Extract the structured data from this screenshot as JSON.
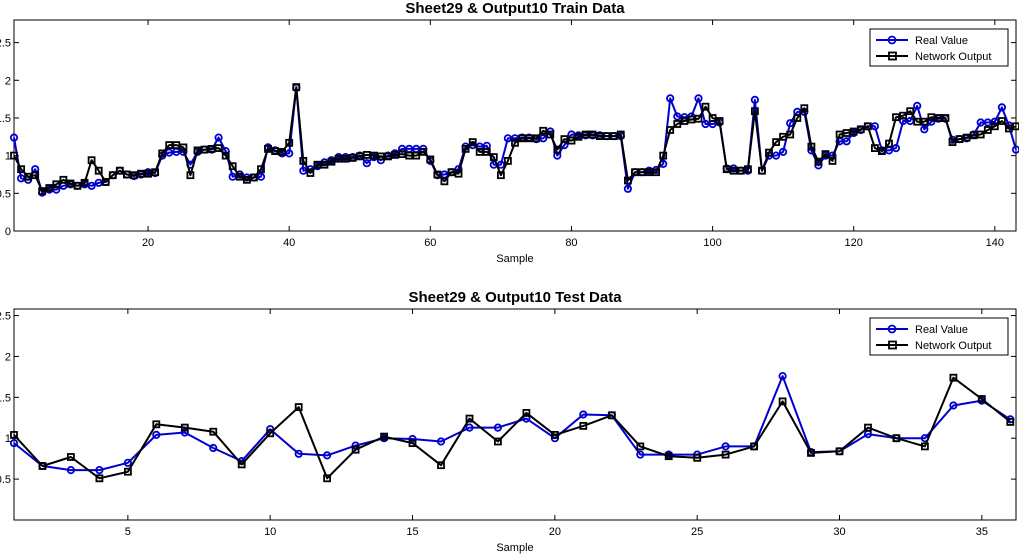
{
  "chart_data": [
    {
      "type": "line",
      "title": "Sheet29 & Output10 Train Data",
      "xlabel": "Sample",
      "ylabel": "",
      "xlim": [
        1,
        143
      ],
      "ylim": [
        0,
        2.8
      ],
      "xticks": [
        20,
        40,
        60,
        80,
        100,
        120,
        140
      ],
      "yticks": [
        0,
        0.5,
        1,
        1.5,
        2,
        2.5
      ],
      "ytick_labels": [
        "0",
        "0.5",
        "1",
        "1.5",
        "2",
        "2.5"
      ],
      "grid": false,
      "legend_position": "top-right",
      "series": [
        {
          "name": "Real Value",
          "color": "#0000d0",
          "marker": "circle",
          "values": [
            1.24,
            0.7,
            0.68,
            0.82,
            0.51,
            0.55,
            0.55,
            0.6,
            0.62,
            0.6,
            0.62,
            0.6,
            0.64,
            0.65,
            0.74,
            0.8,
            0.75,
            0.73,
            0.75,
            0.78,
            0.77,
            1.0,
            1.04,
            1.05,
            1.05,
            0.88,
            1.05,
            1.08,
            1.08,
            1.24,
            1.06,
            0.72,
            0.75,
            0.71,
            0.71,
            0.72,
            1.11,
            1.07,
            1.03,
            1.03,
            1.9,
            0.8,
            0.82,
            0.86,
            0.91,
            0.94,
            0.98,
            0.98,
            0.98,
            1.0,
            0.9,
            0.98,
            0.94,
            1.0,
            1.03,
            1.09,
            1.09,
            1.09,
            1.09,
            0.93,
            0.74,
            0.75,
            0.78,
            0.82,
            1.12,
            1.14,
            1.12,
            1.13,
            0.88,
            0.88,
            1.23,
            1.23,
            1.24,
            1.24,
            1.22,
            1.23,
            1.32,
            1.0,
            1.14,
            1.28,
            1.27,
            1.27,
            1.27,
            1.27,
            1.26,
            1.26,
            1.26,
            0.56,
            0.78,
            0.78,
            0.8,
            0.81,
            0.89,
            1.76,
            1.52,
            1.51,
            1.52,
            1.76,
            1.42,
            1.42,
            1.44,
            0.83,
            0.83,
            0.8,
            0.8,
            1.74,
            0.8,
            1.0,
            1.0,
            1.05,
            1.43,
            1.58,
            1.58,
            1.07,
            0.87,
            1.0,
            1.0,
            1.19,
            1.19,
            1.3,
            1.34,
            1.39,
            1.39,
            1.07,
            1.07,
            1.1,
            1.46,
            1.46,
            1.66,
            1.35,
            1.45,
            1.49,
            1.49,
            1.21,
            1.22,
            1.23,
            1.28,
            1.44,
            1.44,
            1.45,
            1.64,
            1.4,
            1.08
          ]
        },
        {
          "name": "Network Output",
          "color": "#000000",
          "marker": "square",
          "values": [
            1.0,
            0.82,
            0.72,
            0.74,
            0.53,
            0.57,
            0.62,
            0.68,
            0.63,
            0.6,
            0.64,
            0.94,
            0.8,
            0.65,
            0.74,
            0.8,
            0.75,
            0.74,
            0.76,
            0.76,
            0.78,
            1.03,
            1.14,
            1.14,
            1.11,
            0.74,
            1.07,
            1.08,
            1.09,
            1.1,
            1.0,
            0.86,
            0.72,
            0.68,
            0.71,
            0.82,
            1.09,
            1.06,
            1.05,
            1.17,
            1.91,
            0.93,
            0.77,
            0.88,
            0.88,
            0.92,
            0.96,
            0.96,
            0.97,
            0.99,
            1.01,
            1.0,
            0.99,
            0.99,
            1.01,
            1.02,
            1.0,
            1.0,
            1.05,
            0.95,
            0.75,
            0.66,
            0.78,
            0.76,
            1.09,
            1.18,
            1.05,
            1.05,
            0.98,
            0.74,
            0.93,
            1.17,
            1.23,
            1.23,
            1.23,
            1.33,
            1.28,
            1.08,
            1.22,
            1.2,
            1.25,
            1.28,
            1.28,
            1.26,
            1.26,
            1.26,
            1.28,
            0.67,
            0.78,
            0.78,
            0.78,
            0.78,
            1.0,
            1.34,
            1.42,
            1.46,
            1.48,
            1.49,
            1.65,
            1.5,
            1.46,
            0.82,
            0.8,
            0.8,
            0.82,
            1.59,
            0.8,
            1.04,
            1.18,
            1.25,
            1.28,
            1.5,
            1.63,
            1.12,
            0.92,
            1.02,
            0.93,
            1.28,
            1.3,
            1.32,
            1.35,
            1.39,
            1.1,
            1.06,
            1.16,
            1.51,
            1.53,
            1.59,
            1.45,
            1.45,
            1.51,
            1.5,
            1.5,
            1.18,
            1.22,
            1.24,
            1.27,
            1.28,
            1.34,
            1.39,
            1.46,
            1.36,
            1.39
          ]
        }
      ]
    },
    {
      "type": "line",
      "title": "Sheet29 & Output10 Test Data",
      "xlabel": "Sample",
      "ylabel": "",
      "xlim": [
        1,
        36.2
      ],
      "ylim": [
        0,
        2.58
      ],
      "xticks": [
        5,
        10,
        15,
        20,
        25,
        30,
        35
      ],
      "yticks": [
        0.5,
        1,
        1.5,
        2,
        2.5
      ],
      "ytick_labels": [
        "0.5",
        "1",
        "1.5",
        "2",
        "2.5"
      ],
      "grid": false,
      "legend_position": "top-right",
      "series": [
        {
          "name": "Real Value",
          "color": "#0000d0",
          "marker": "circle",
          "values": [
            0.94,
            0.66,
            0.61,
            0.61,
            0.7,
            1.04,
            1.07,
            0.88,
            0.72,
            1.11,
            0.81,
            0.79,
            0.91,
            1.0,
            0.99,
            0.96,
            1.13,
            1.13,
            1.24,
            1.0,
            1.29,
            1.28,
            0.8,
            0.8,
            0.8,
            0.9,
            0.9,
            1.76,
            0.83,
            0.84,
            1.05,
            1.0,
            1.0,
            1.4,
            1.46,
            1.23
          ]
        },
        {
          "name": "Network Output",
          "color": "#000000",
          "marker": "square",
          "values": [
            1.04,
            0.66,
            0.77,
            0.51,
            0.59,
            1.17,
            1.13,
            1.08,
            0.68,
            1.06,
            1.38,
            0.51,
            0.86,
            1.02,
            0.94,
            0.67,
            1.24,
            0.96,
            1.31,
            1.04,
            1.15,
            1.28,
            0.9,
            0.78,
            0.76,
            0.8,
            0.9,
            1.45,
            0.82,
            0.84,
            1.13,
            1.0,
            0.9,
            1.74,
            1.48,
            1.2
          ]
        }
      ]
    }
  ]
}
